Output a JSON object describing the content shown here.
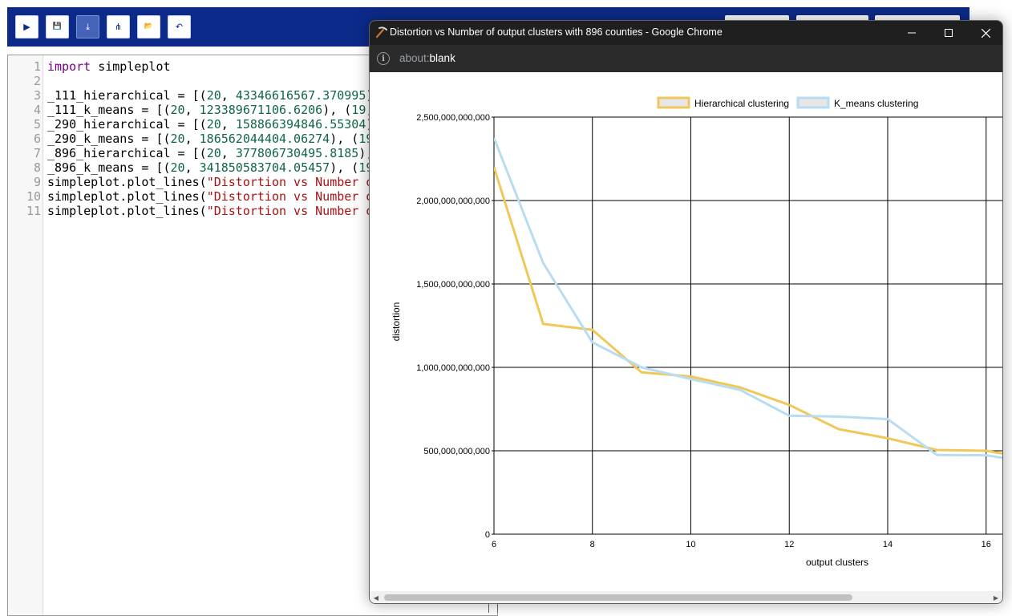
{
  "toolbar": {
    "buttons": [
      {
        "name": "run",
        "glyph": "▶"
      },
      {
        "name": "save",
        "glyph": "💾"
      },
      {
        "name": "download",
        "glyph": "⤓"
      },
      {
        "name": "share",
        "glyph": "⋔"
      },
      {
        "name": "open",
        "glyph": "📂"
      },
      {
        "name": "undo",
        "glyph": "↶"
      }
    ]
  },
  "editor": {
    "line_numbers": [
      "1",
      "2",
      "3",
      "4",
      "5",
      "6",
      "7",
      "8",
      "9",
      "10",
      "11"
    ],
    "lines": [
      [
        {
          "t": "import",
          "c": "kw"
        },
        {
          "t": " simpleplot",
          "c": ""
        }
      ],
      [],
      [
        {
          "t": "_111_hierarchical = [(",
          "c": ""
        },
        {
          "t": "20",
          "c": "num"
        },
        {
          "t": ", ",
          "c": ""
        },
        {
          "t": "43346616567.370995",
          "c": "num"
        },
        {
          "t": ")",
          "c": ""
        }
      ],
      [
        {
          "t": "_111_k_means = [(",
          "c": ""
        },
        {
          "t": "20",
          "c": "num"
        },
        {
          "t": ", ",
          "c": ""
        },
        {
          "t": "123389671106.6206",
          "c": "num"
        },
        {
          "t": "), (",
          "c": ""
        },
        {
          "t": "19",
          "c": "num"
        },
        {
          "t": ",",
          "c": ""
        }
      ],
      [
        {
          "t": "_290_hierarchical = [(",
          "c": ""
        },
        {
          "t": "20",
          "c": "num"
        },
        {
          "t": ", ",
          "c": ""
        },
        {
          "t": "158866394846.55304",
          "c": "num"
        },
        {
          "t": ")",
          "c": ""
        }
      ],
      [
        {
          "t": "_290_k_means = [(",
          "c": ""
        },
        {
          "t": "20",
          "c": "num"
        },
        {
          "t": ", ",
          "c": ""
        },
        {
          "t": "186562044404.06274",
          "c": "num"
        },
        {
          "t": "), (",
          "c": ""
        },
        {
          "t": "19",
          "c": "num"
        }
      ],
      [
        {
          "t": "_896_hierarchical = [(",
          "c": ""
        },
        {
          "t": "20",
          "c": "num"
        },
        {
          "t": ", ",
          "c": ""
        },
        {
          "t": "377806730495.8185",
          "c": "num"
        },
        {
          "t": "),",
          "c": ""
        }
      ],
      [
        {
          "t": "_896_k_means = [(",
          "c": ""
        },
        {
          "t": "20",
          "c": "num"
        },
        {
          "t": ", ",
          "c": ""
        },
        {
          "t": "341850583704.05457",
          "c": "num"
        },
        {
          "t": "), (",
          "c": ""
        },
        {
          "t": "19",
          "c": "num"
        }
      ],
      [
        {
          "t": "simpleplot.plot_lines(",
          "c": ""
        },
        {
          "t": "\"Distortion vs Number o",
          "c": "str"
        }
      ],
      [
        {
          "t": "simpleplot.plot_lines(",
          "c": ""
        },
        {
          "t": "\"Distortion vs Number o",
          "c": "str"
        }
      ],
      [
        {
          "t": "simpleplot.plot_lines(",
          "c": ""
        },
        {
          "t": "\"Distortion vs Number o",
          "c": "str"
        }
      ]
    ]
  },
  "window": {
    "title": "Distortion vs Number of output clusters with 896 counties - Google Chrome",
    "url_scheme": "about:",
    "url_host": "blank"
  },
  "chart_data": {
    "type": "line",
    "xlabel": "output clusters",
    "ylabel": "distortion",
    "xlim": [
      6,
      16.2
    ],
    "ylim": [
      0,
      2500000000000
    ],
    "x_ticks": [
      6,
      8,
      10,
      12,
      14,
      16
    ],
    "y_ticks": [
      0,
      500000000000,
      1000000000000,
      1500000000000,
      2000000000000,
      2500000000000
    ],
    "x_tick_labels": [
      "6",
      "8",
      "10",
      "12",
      "14",
      "16"
    ],
    "y_tick_labels": [
      "0",
      "500,000,000,000",
      "1,000,000,000,000",
      "1,500,000,000,000",
      "2,000,000,000,000",
      "2,500,000,000,000"
    ],
    "grid": true,
    "legend_position": "top",
    "series": [
      {
        "name": "Hierarchical clustering",
        "color": "#f0c85a",
        "points": [
          [
            6,
            2200000000000
          ],
          [
            7,
            1260000000000
          ],
          [
            8,
            1225000000000
          ],
          [
            9,
            970000000000
          ],
          [
            10,
            945000000000
          ],
          [
            11,
            880000000000
          ],
          [
            12,
            775000000000
          ],
          [
            13,
            630000000000
          ],
          [
            14,
            575000000000
          ],
          [
            15,
            505000000000
          ],
          [
            16,
            500000000000
          ],
          [
            16.5,
            475000000000
          ]
        ]
      },
      {
        "name": "K_means clustering",
        "color": "#b8dcf0",
        "points": [
          [
            6,
            2375000000000
          ],
          [
            7,
            1625000000000
          ],
          [
            8,
            1150000000000
          ],
          [
            9,
            1000000000000
          ],
          [
            10,
            930000000000
          ],
          [
            11,
            865000000000
          ],
          [
            12,
            710000000000
          ],
          [
            13,
            705000000000
          ],
          [
            14,
            690000000000
          ],
          [
            15,
            475000000000
          ],
          [
            16,
            473000000000
          ],
          [
            16.5,
            450000000000
          ]
        ]
      }
    ]
  }
}
